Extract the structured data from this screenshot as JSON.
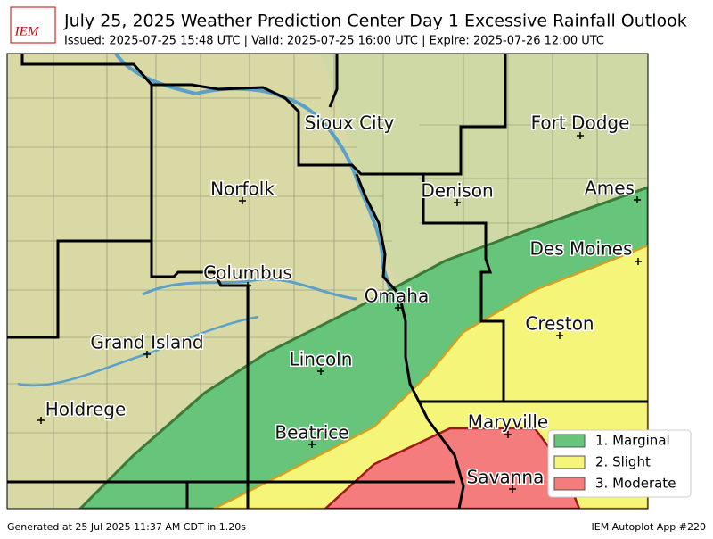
{
  "header": {
    "logo": "IEM",
    "title": "July 25, 2025 Weather Prediction Center Day 1 Excessive Rainfall Outlook",
    "subtitle": "Issued: 2025-07-25 15:48 UTC | Valid: 2025-07-25 16:00 UTC | Expire: 2025-07-26 12:00 UTC"
  },
  "cities": [
    {
      "label": "Sioux City"
    },
    {
      "label": "Fort Dodge"
    },
    {
      "label": "Norfolk"
    },
    {
      "label": "Denison"
    },
    {
      "label": "Ames"
    },
    {
      "label": "Des Moines"
    },
    {
      "label": "Columbus"
    },
    {
      "label": "Omaha"
    },
    {
      "label": "Creston"
    },
    {
      "label": "Grand Island"
    },
    {
      "label": "Lincoln"
    },
    {
      "label": "Holdrege"
    },
    {
      "label": "Beatrice"
    },
    {
      "label": "Maryville"
    },
    {
      "label": "Savanna"
    }
  ],
  "legend": [
    {
      "label": "1. Marginal",
      "color": "#66c57a"
    },
    {
      "label": "2. Slight",
      "color": "#f5f57a"
    },
    {
      "label": "3. Moderate",
      "color": "#f47c7c"
    }
  ],
  "footer": {
    "left": "Generated at 25 Jul 2025 11:37 AM CDT in 1.20s",
    "right": "IEM Autoplot App #220"
  }
}
